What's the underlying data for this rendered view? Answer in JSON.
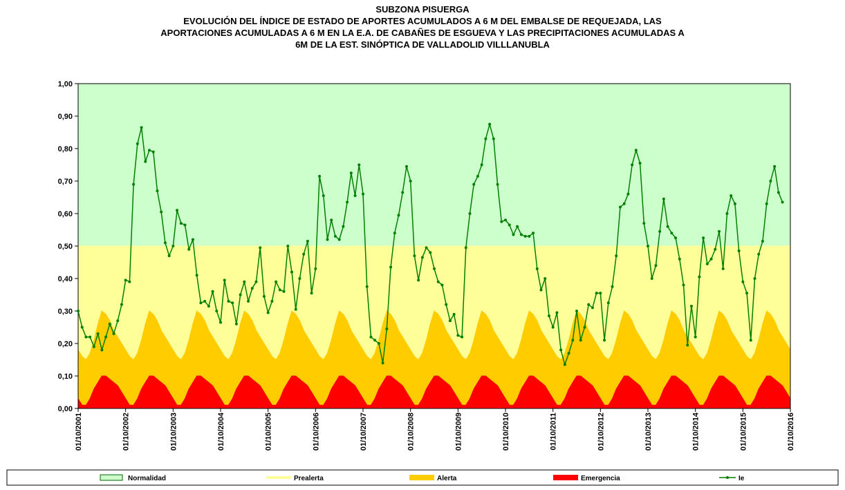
{
  "chart_data": {
    "type": "area",
    "title": [
      "SUBZONA PISUERGA",
      "EVOLUCIÓN DEL ÍNDICE DE ESTADO DE APORTES ACUMULADOS  A 6 M  DEL EMBALSE DE REQUEJADA, LAS",
      "APORTACIONES  ACUMULADAS  A 6 M EN LA E.A. DE CABAÑES  DE ESGUEVA  Y LAS PRECIPITACIONES  ACUMULADAS  A",
      "6M DE LA EST. SINÓPTICA DE VALLADOLID  VILLLANUBLA"
    ],
    "categories": [
      "01/10/2001",
      null,
      null,
      null,
      null,
      null,
      null,
      null,
      null,
      null,
      null,
      null,
      "01/10/2002",
      null,
      null,
      null,
      null,
      null,
      null,
      null,
      null,
      null,
      null,
      null,
      "01/10/2003",
      null,
      null,
      null,
      null,
      null,
      null,
      null,
      null,
      null,
      null,
      null,
      "01/10/2004",
      null,
      null,
      null,
      null,
      null,
      null,
      null,
      null,
      null,
      null,
      null,
      "01/10/2005",
      null,
      null,
      null,
      null,
      null,
      null,
      null,
      null,
      null,
      null,
      null,
      "01/10/2006",
      null,
      null,
      null,
      null,
      null,
      null,
      null,
      null,
      null,
      null,
      null,
      "01/10/2007",
      null,
      null,
      null,
      null,
      null,
      null,
      null,
      null,
      null,
      null,
      null,
      "01/10/2008",
      null,
      null,
      null,
      null,
      null,
      null,
      null,
      null,
      null,
      null,
      null,
      "01/10/2009",
      null,
      null,
      null,
      null,
      null,
      null,
      null,
      null,
      null,
      null,
      null,
      "01/10/2010",
      null,
      null,
      null,
      null,
      null,
      null,
      null,
      null,
      null,
      null,
      null,
      "01/10/2011",
      null,
      null,
      null,
      null,
      null,
      null,
      null,
      null,
      null,
      null,
      null,
      "01/10/2012",
      null,
      null,
      null,
      null,
      null,
      null,
      null,
      null,
      null,
      null,
      null,
      "01/10/2013",
      null,
      null,
      null,
      null,
      null,
      null,
      null,
      null,
      null,
      null,
      null,
      "01/10/2014",
      null,
      null,
      null,
      null,
      null,
      null,
      null,
      null,
      null,
      null,
      null,
      "01/10/2015",
      null,
      null,
      null,
      null,
      null,
      null,
      null,
      null,
      null,
      null,
      null,
      "01/10/2016"
    ],
    "ylim": [
      0,
      1
    ],
    "yticks": [
      {
        "value": 0,
        "label": "0,00"
      },
      {
        "value": 0.1,
        "label": "0,10"
      },
      {
        "value": 0.2,
        "label": "0,20"
      },
      {
        "value": 0.3,
        "label": "0,30"
      },
      {
        "value": 0.4,
        "label": "0,40"
      },
      {
        "value": 0.5,
        "label": "0,50"
      },
      {
        "value": 0.6,
        "label": "0,60"
      },
      {
        "value": 0.7,
        "label": "0,70"
      },
      {
        "value": 0.8,
        "label": "0,80"
      },
      {
        "value": 0.9,
        "label": "0,90"
      },
      {
        "value": 1,
        "label": "1,00"
      }
    ],
    "series": [
      {
        "name": "Normalidad",
        "type": "area",
        "color": "#ccffcc",
        "values": [
          1,
          1,
          1,
          1,
          1,
          1,
          1,
          1,
          1,
          1,
          1,
          1,
          1,
          1,
          1,
          1,
          1,
          1,
          1,
          1,
          1,
          1,
          1,
          1,
          1,
          1,
          1,
          1,
          1,
          1,
          1,
          1,
          1,
          1,
          1,
          1,
          1,
          1,
          1,
          1,
          1,
          1,
          1,
          1,
          1,
          1,
          1,
          1,
          1,
          1,
          1,
          1,
          1,
          1,
          1,
          1,
          1,
          1,
          1,
          1,
          1,
          1,
          1,
          1,
          1,
          1,
          1,
          1,
          1,
          1,
          1,
          1,
          1,
          1,
          1,
          1,
          1,
          1,
          1,
          1,
          1,
          1,
          1,
          1,
          1,
          1,
          1,
          1,
          1,
          1,
          1,
          1,
          1,
          1,
          1,
          1,
          1,
          1,
          1,
          1,
          1,
          1,
          1,
          1,
          1,
          1,
          1,
          1,
          1,
          1,
          1,
          1,
          1,
          1,
          1,
          1,
          1,
          1,
          1,
          1,
          1,
          1,
          1,
          1,
          1,
          1,
          1,
          1,
          1,
          1,
          1,
          1,
          1,
          1,
          1,
          1,
          1,
          1,
          1,
          1,
          1,
          1,
          1,
          1,
          1,
          1,
          1,
          1,
          1,
          1,
          1,
          1,
          1,
          1,
          1,
          1,
          1,
          1,
          1,
          1,
          1,
          1,
          1,
          1,
          1,
          1,
          1,
          1,
          1,
          1,
          1,
          1,
          1,
          1,
          1,
          1,
          1,
          1,
          1,
          1,
          1
        ]
      },
      {
        "name": "Prealerta",
        "type": "area",
        "color": "#ffff99",
        "values": [
          0.5,
          0.5,
          0.5,
          0.5,
          0.5,
          0.5,
          0.5,
          0.5,
          0.5,
          0.5,
          0.5,
          0.5,
          0.5,
          0.5,
          0.5,
          0.5,
          0.5,
          0.5,
          0.5,
          0.5,
          0.5,
          0.5,
          0.5,
          0.5,
          0.5,
          0.5,
          0.5,
          0.5,
          0.5,
          0.5,
          0.5,
          0.5,
          0.5,
          0.5,
          0.5,
          0.5,
          0.5,
          0.5,
          0.5,
          0.5,
          0.5,
          0.5,
          0.5,
          0.5,
          0.5,
          0.5,
          0.5,
          0.5,
          0.5,
          0.5,
          0.5,
          0.5,
          0.5,
          0.5,
          0.5,
          0.5,
          0.5,
          0.5,
          0.5,
          0.5,
          0.5,
          0.5,
          0.5,
          0.5,
          0.5,
          0.5,
          0.5,
          0.5,
          0.5,
          0.5,
          0.5,
          0.5,
          0.5,
          0.5,
          0.5,
          0.5,
          0.5,
          0.5,
          0.5,
          0.5,
          0.5,
          0.5,
          0.5,
          0.5,
          0.5,
          0.5,
          0.5,
          0.5,
          0.5,
          0.5,
          0.5,
          0.5,
          0.5,
          0.5,
          0.5,
          0.5,
          0.5,
          0.5,
          0.5,
          0.5,
          0.5,
          0.5,
          0.5,
          0.5,
          0.5,
          0.5,
          0.5,
          0.5,
          0.5,
          0.5,
          0.5,
          0.5,
          0.5,
          0.5,
          0.5,
          0.5,
          0.5,
          0.5,
          0.5,
          0.5,
          0.5,
          0.5,
          0.5,
          0.5,
          0.5,
          0.5,
          0.5,
          0.5,
          0.5,
          0.5,
          0.5,
          0.5,
          0.5,
          0.5,
          0.5,
          0.5,
          0.5,
          0.5,
          0.5,
          0.5,
          0.5,
          0.5,
          0.5,
          0.5,
          0.5,
          0.5,
          0.5,
          0.5,
          0.5,
          0.5,
          0.5,
          0.5,
          0.5,
          0.5,
          0.5,
          0.5,
          0.5,
          0.5,
          0.5,
          0.5,
          0.5,
          0.5,
          0.5,
          0.5,
          0.5,
          0.5,
          0.5,
          0.5,
          0.5,
          0.5,
          0.5,
          0.5,
          0.5,
          0.5,
          0.5,
          0.5,
          0.5,
          0.5,
          0.5,
          0.5,
          0.5
        ]
      },
      {
        "name": "Alerta",
        "type": "area",
        "color": "#ffcc00",
        "values": [
          0.18,
          0.16,
          0.15,
          0.17,
          0.21,
          0.26,
          0.3,
          0.29,
          0.27,
          0.24,
          0.22,
          0.2,
          0.18,
          0.16,
          0.15,
          0.17,
          0.21,
          0.26,
          0.3,
          0.29,
          0.27,
          0.24,
          0.22,
          0.2,
          0.18,
          0.16,
          0.15,
          0.17,
          0.21,
          0.26,
          0.3,
          0.29,
          0.27,
          0.24,
          0.22,
          0.2,
          0.18,
          0.16,
          0.15,
          0.17,
          0.21,
          0.26,
          0.3,
          0.29,
          0.27,
          0.24,
          0.22,
          0.2,
          0.18,
          0.16,
          0.15,
          0.17,
          0.21,
          0.26,
          0.3,
          0.29,
          0.27,
          0.24,
          0.22,
          0.2,
          0.18,
          0.16,
          0.15,
          0.17,
          0.21,
          0.26,
          0.3,
          0.29,
          0.27,
          0.24,
          0.22,
          0.2,
          0.18,
          0.16,
          0.15,
          0.17,
          0.21,
          0.26,
          0.3,
          0.29,
          0.27,
          0.24,
          0.22,
          0.2,
          0.18,
          0.16,
          0.15,
          0.17,
          0.21,
          0.26,
          0.3,
          0.29,
          0.27,
          0.24,
          0.22,
          0.2,
          0.18,
          0.16,
          0.15,
          0.17,
          0.21,
          0.26,
          0.3,
          0.29,
          0.27,
          0.24,
          0.22,
          0.2,
          0.18,
          0.16,
          0.15,
          0.17,
          0.21,
          0.26,
          0.3,
          0.29,
          0.27,
          0.24,
          0.22,
          0.2,
          0.18,
          0.16,
          0.15,
          0.17,
          0.21,
          0.26,
          0.3,
          0.29,
          0.27,
          0.24,
          0.22,
          0.2,
          0.18,
          0.16,
          0.15,
          0.17,
          0.21,
          0.26,
          0.3,
          0.29,
          0.27,
          0.24,
          0.22,
          0.2,
          0.18,
          0.16,
          0.15,
          0.17,
          0.21,
          0.26,
          0.3,
          0.29,
          0.27,
          0.24,
          0.22,
          0.2,
          0.18,
          0.16,
          0.15,
          0.17,
          0.21,
          0.26,
          0.3,
          0.29,
          0.27,
          0.24,
          0.22,
          0.2,
          0.18,
          0.16,
          0.15,
          0.17,
          0.21,
          0.26,
          0.3,
          0.29,
          0.27,
          0.24,
          0.22,
          0.2,
          0.18
        ]
      },
      {
        "name": "Emergencia",
        "type": "area",
        "color": "#ff0000",
        "values": [
          0.03,
          0.01,
          0.01,
          0.03,
          0.06,
          0.08,
          0.1,
          0.1,
          0.09,
          0.08,
          0.07,
          0.05,
          0.03,
          0.01,
          0.01,
          0.03,
          0.06,
          0.08,
          0.1,
          0.1,
          0.09,
          0.08,
          0.07,
          0.05,
          0.03,
          0.01,
          0.01,
          0.03,
          0.06,
          0.08,
          0.1,
          0.1,
          0.09,
          0.08,
          0.07,
          0.05,
          0.03,
          0.01,
          0.01,
          0.03,
          0.06,
          0.08,
          0.1,
          0.1,
          0.09,
          0.08,
          0.07,
          0.05,
          0.03,
          0.01,
          0.01,
          0.03,
          0.06,
          0.08,
          0.1,
          0.1,
          0.09,
          0.08,
          0.07,
          0.05,
          0.03,
          0.01,
          0.01,
          0.03,
          0.06,
          0.08,
          0.1,
          0.1,
          0.09,
          0.08,
          0.07,
          0.05,
          0.03,
          0.01,
          0.01,
          0.03,
          0.06,
          0.08,
          0.1,
          0.1,
          0.09,
          0.08,
          0.07,
          0.05,
          0.03,
          0.01,
          0.01,
          0.03,
          0.06,
          0.08,
          0.1,
          0.1,
          0.09,
          0.08,
          0.07,
          0.05,
          0.03,
          0.01,
          0.01,
          0.03,
          0.06,
          0.08,
          0.1,
          0.1,
          0.09,
          0.08,
          0.07,
          0.05,
          0.03,
          0.01,
          0.01,
          0.03,
          0.06,
          0.08,
          0.1,
          0.1,
          0.09,
          0.08,
          0.07,
          0.05,
          0.03,
          0.01,
          0.01,
          0.03,
          0.06,
          0.08,
          0.1,
          0.1,
          0.09,
          0.08,
          0.07,
          0.05,
          0.03,
          0.01,
          0.01,
          0.03,
          0.06,
          0.08,
          0.1,
          0.1,
          0.09,
          0.08,
          0.07,
          0.05,
          0.03,
          0.01,
          0.01,
          0.03,
          0.06,
          0.08,
          0.1,
          0.1,
          0.09,
          0.08,
          0.07,
          0.05,
          0.03,
          0.01,
          0.01,
          0.03,
          0.06,
          0.08,
          0.1,
          0.1,
          0.09,
          0.08,
          0.07,
          0.05,
          0.03,
          0.01,
          0.01,
          0.03,
          0.06,
          0.08,
          0.1,
          0.1,
          0.09,
          0.08,
          0.07,
          0.05,
          0.03
        ]
      },
      {
        "name": "Ie",
        "type": "line",
        "color": "#008000",
        "values": [
          0.3,
          0.25,
          0.22,
          0.22,
          0.19,
          0.23,
          0.18,
          0.22,
          0.26,
          0.23,
          0.27,
          0.32,
          0.395,
          0.39,
          0.69,
          0.815,
          0.865,
          0.76,
          0.795,
          0.79,
          0.67,
          0.605,
          0.51,
          0.47,
          0.5,
          0.61,
          0.57,
          0.565,
          0.49,
          0.52,
          0.41,
          0.325,
          0.33,
          0.315,
          0.36,
          0.3,
          0.265,
          0.395,
          0.33,
          0.325,
          0.26,
          0.35,
          0.39,
          0.33,
          0.37,
          0.39,
          0.495,
          0.345,
          0.295,
          0.33,
          0.39,
          0.365,
          0.36,
          0.5,
          0.42,
          0.305,
          0.4,
          0.475,
          0.515,
          0.355,
          0.43,
          0.715,
          0.655,
          0.52,
          0.58,
          0.53,
          0.52,
          0.56,
          0.635,
          0.725,
          0.655,
          0.75,
          0.66,
          0.375,
          0.22,
          0.21,
          0.2,
          0.14,
          0.245,
          0.435,
          0.54,
          0.595,
          0.665,
          0.745,
          0.7,
          0.47,
          0.395,
          0.465,
          0.495,
          0.48,
          0.43,
          0.39,
          0.38,
          0.32,
          0.27,
          0.29,
          0.225,
          0.22,
          0.495,
          0.6,
          0.69,
          0.715,
          0.75,
          0.83,
          0.875,
          0.83,
          0.69,
          0.575,
          0.58,
          0.565,
          0.535,
          0.56,
          0.535,
          0.53,
          0.53,
          0.54,
          0.43,
          0.365,
          0.4,
          0.285,
          0.25,
          0.295,
          0.18,
          0.135,
          0.17,
          0.21,
          0.3,
          0.21,
          0.25,
          0.32,
          0.31,
          0.355,
          0.355,
          0.21,
          0.325,
          0.375,
          0.47,
          0.62,
          0.63,
          0.66,
          0.75,
          0.795,
          0.755,
          0.57,
          0.5,
          0.4,
          0.44,
          0.545,
          0.645,
          0.56,
          0.54,
          0.525,
          0.46,
          0.38,
          0.195,
          0.315,
          0.22,
          0.405,
          0.525,
          0.445,
          0.46,
          0.49,
          0.545,
          0.43,
          0.6,
          0.655,
          0.63,
          0.485,
          0.39,
          0.355,
          0.21,
          0.4,
          0.475,
          0.515,
          0.63,
          0.7,
          0.745,
          0.665,
          0.635,
          null,
          null
        ]
      }
    ]
  }
}
